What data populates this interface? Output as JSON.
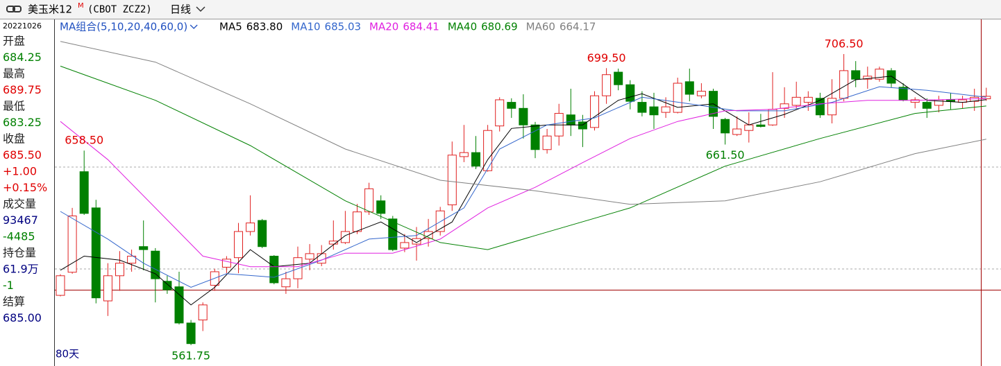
{
  "header": {
    "title": "美玉米12",
    "title_sup": "M",
    "symbol": "(CBOT ZCZ2)",
    "period": "日线"
  },
  "info": {
    "date": "20221026",
    "lines": [
      {
        "text": "开盘",
        "color": "#222222"
      },
      {
        "text": "684.25",
        "color": "#008000"
      },
      {
        "text": "最高",
        "color": "#222222"
      },
      {
        "text": "689.75",
        "color": "#e00000"
      },
      {
        "text": "最低",
        "color": "#222222"
      },
      {
        "text": "683.25",
        "color": "#008000"
      },
      {
        "text": "收盘",
        "color": "#222222"
      },
      {
        "text": "685.50",
        "color": "#e00000"
      },
      {
        "text": "+1.00",
        "color": "#e00000"
      },
      {
        "text": "+0.15%",
        "color": "#e00000"
      },
      {
        "text": "成交量",
        "color": "#222222"
      },
      {
        "text": "93467",
        "color": "#000080"
      },
      {
        "text": "-4485",
        "color": "#008000"
      },
      {
        "text": "持仓量",
        "color": "#222222"
      },
      {
        "text": "61.9万",
        "color": "#000080"
      },
      {
        "text": "-1",
        "color": "#008000"
      },
      {
        "text": "结算",
        "color": "#222222"
      },
      {
        "text": "685.00",
        "color": "#000080"
      }
    ]
  },
  "chart_data": {
    "type": "candlestick",
    "ma_group": "MA组合(5,10,20,40,60,0)",
    "range_label": "80天",
    "up_color": "#e02020",
    "down_color": "#008000",
    "ylim": [
      552.4,
      723.04
    ],
    "open": [
      586.5,
      598,
      648,
      630,
      583.75,
      596.25,
      602.5,
      610.75,
      608.5,
      593.5,
      590.75,
      572.75,
      574.25,
      591.5,
      600.5,
      605.25,
      618.25,
      623.75,
      606,
      590.75,
      594.75,
      604.5,
      602.5,
      612,
      612.75,
      618.25,
      628,
      633.5,
      624.5,
      610,
      612,
      614.75,
      618.25,
      631.5,
      655.5,
      657.5,
      648.5,
      670.75,
      682.5,
      679.5,
      671.25,
      659,
      665.75,
      676.25,
      672.75,
      670,
      685.75,
      697.5,
      691.25,
      682.5,
      680.25,
      677.5,
      677.5,
      692.75,
      685.75,
      688,
      674,
      666.5,
      668.5,
      671.25,
      671.25,
      679.5,
      681,
      682.5,
      684.5,
      676.25,
      684.5,
      698.25,
      694,
      694,
      698.25,
      690,
      682.5,
      682.5,
      681,
      683.75,
      682.5,
      683,
      684.25
    ],
    "high": [
      597,
      630,
      658.5,
      634,
      602.5,
      608.5,
      609.25,
      623.75,
      610,
      596.25,
      598.25,
      574.25,
      583,
      599.75,
      606,
      622.5,
      636.25,
      624.5,
      606.5,
      598.25,
      610.75,
      612,
      611.5,
      623.75,
      628.5,
      632,
      642.5,
      636.25,
      626,
      617,
      620.5,
      624.5,
      630.5,
      663,
      671.25,
      665.75,
      671.25,
      685,
      684.5,
      686.5,
      672.75,
      669.25,
      681.75,
      689.25,
      676.25,
      688,
      699.5,
      699.25,
      693.5,
      688,
      687.25,
      685,
      694.75,
      699.25,
      692,
      689.25,
      674.75,
      675.5,
      677.5,
      676.75,
      697.5,
      690,
      692.75,
      688,
      687.25,
      694,
      706.5,
      703,
      700.25,
      700.25,
      699.5,
      692,
      685,
      684.5,
      685.75,
      687.25,
      685.75,
      689.25,
      689.75
    ],
    "low": [
      586,
      597.25,
      626.5,
      582.5,
      576.25,
      588.75,
      598.25,
      599,
      583,
      587.25,
      572,
      561.75,
      568.75,
      588.75,
      597.5,
      597.5,
      616.25,
      610,
      592,
      587.25,
      590,
      599,
      601,
      609.25,
      612,
      617,
      626.5,
      624.5,
      608.5,
      608,
      603.75,
      610.75,
      616.25,
      628.5,
      652.75,
      649.25,
      648,
      668,
      674.75,
      664.5,
      654.75,
      657,
      661,
      665.75,
      660.25,
      668.5,
      681.75,
      688.5,
      679,
      675.5,
      669.25,
      674.75,
      677,
      683,
      684.5,
      669.25,
      661.5,
      665.75,
      662.5,
      670,
      670.75,
      674.75,
      679.5,
      678.25,
      674.75,
      672,
      683,
      690,
      689.25,
      692.75,
      690,
      683,
      679.5,
      674.75,
      677.5,
      679,
      679.5,
      678.25,
      683.25
    ],
    "close": [
      596.25,
      626,
      627.25,
      585.25,
      596.25,
      602.5,
      606,
      609.25,
      594.75,
      589.25,
      572.75,
      562.5,
      581.75,
      598.25,
      604.5,
      618.25,
      622.5,
      610.75,
      592.75,
      594.75,
      605.25,
      607.25,
      607.25,
      613.5,
      618.25,
      628,
      639.5,
      627.25,
      609.25,
      612.75,
      614.75,
      618.25,
      628.5,
      656.25,
      657.5,
      650.75,
      668.5,
      683.75,
      679.5,
      671.25,
      659,
      665.75,
      677,
      671.25,
      669.25,
      685.75,
      696.25,
      691.25,
      683,
      677.5,
      676.25,
      680.25,
      692,
      686.5,
      688,
      675.5,
      667.25,
      669.25,
      671.25,
      670.5,
      679,
      681.75,
      685,
      685,
      676.25,
      684.5,
      698.25,
      694,
      695.5,
      699,
      692,
      683.75,
      683.75,
      679.5,
      683.75,
      683,
      683.75,
      685,
      685.5
    ],
    "annotations": [
      {
        "label": "658.50",
        "value": 658.5,
        "color": "#e00000"
      },
      {
        "label": "699.50",
        "value": 699.5,
        "color": "#e00000"
      },
      {
        "label": "706.50",
        "value": 706.5,
        "color": "#e00000"
      },
      {
        "label": "661.50",
        "value": 661.5,
        "color": "#008000"
      },
      {
        "label": "561.75",
        "value": 561.75,
        "color": "#008000"
      }
    ],
    "series": [
      {
        "name": "MA5",
        "color": "#000000",
        "last_value_label": "683.80",
        "x": [
          0,
          2,
          5,
          8,
          11,
          13,
          16,
          18,
          21,
          24,
          27,
          30,
          33,
          36,
          38,
          41,
          44,
          47,
          49,
          52,
          55,
          58,
          61,
          64,
          67,
          70,
          73,
          76,
          78
        ],
        "values": [
          599,
          606,
          604,
          597.25,
          581.75,
          590.5,
          609.25,
          600.75,
          602.5,
          616.25,
          623,
          612.75,
          623,
          654,
          669.5,
          671.25,
          671.25,
          683.5,
          686.75,
          680,
          681.75,
          671.25,
          676.5,
          683.5,
          693.75,
          695.5,
          683.5,
          682.5,
          683.8
        ]
      },
      {
        "name": "MA10",
        "color": "#3366cc",
        "last_value_label": "685.03",
        "x": [
          0,
          4,
          7,
          11,
          14,
          18,
          22,
          26,
          30,
          34,
          37,
          41,
          45,
          49,
          53,
          57,
          61,
          65,
          69,
          73,
          78
        ],
        "values": [
          628.25,
          614.5,
          602.5,
          590.5,
          597.25,
          595.5,
          604,
          614.5,
          616.25,
          630,
          659.25,
          671.25,
          674.75,
          685,
          681.75,
          678.25,
          678.25,
          682.5,
          690.25,
          688.5,
          685.03
        ]
      },
      {
        "name": "MA20",
        "color": "#e020e0",
        "last_value_label": "684.41",
        "x": [
          0,
          4,
          8,
          12,
          16,
          20,
          24,
          28,
          32,
          36,
          40,
          44,
          48,
          52,
          56,
          60,
          64,
          68,
          72,
          78
        ],
        "values": [
          673,
          654,
          630,
          606,
          600.75,
          600.75,
          607.5,
          607.5,
          614.5,
          630,
          640.25,
          652.5,
          664.5,
          673,
          678.25,
          679,
          681.75,
          683.5,
          683.5,
          684.41
        ]
      },
      {
        "name": "MA40",
        "color": "#008000",
        "last_value_label": "680.69",
        "x": [
          0,
          8,
          16,
          24,
          32,
          36,
          40,
          48,
          56,
          64,
          72,
          78
        ],
        "values": [
          700.5,
          683.5,
          661,
          633.5,
          612.75,
          609.25,
          616.25,
          630,
          650.75,
          664.5,
          677,
          680.69
        ]
      },
      {
        "name": "MA60",
        "color": "#808080",
        "last_value_label": "664.17",
        "x": [
          0,
          8,
          16,
          24,
          32,
          40,
          48,
          56,
          64,
          72,
          78
        ],
        "values": [
          712.75,
          702.5,
          681.75,
          659.25,
          643.75,
          638.5,
          631.75,
          633.5,
          643,
          657,
          664.17
        ]
      }
    ]
  }
}
